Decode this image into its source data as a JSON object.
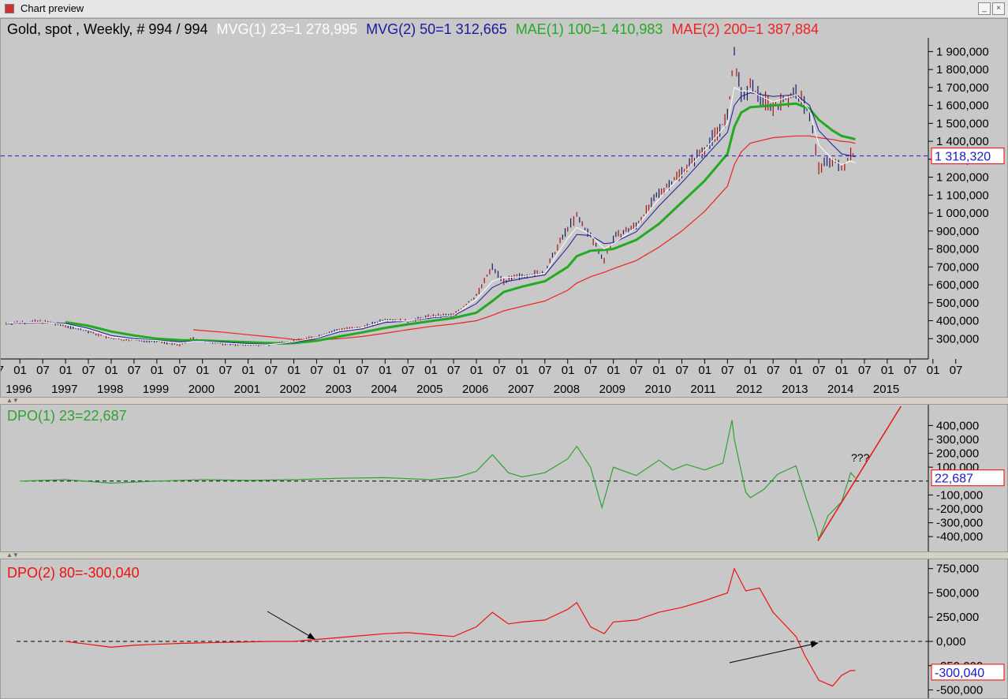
{
  "window": {
    "title": "Chart preview",
    "minimize": "_",
    "close": "×"
  },
  "main_header": {
    "base": "Gold, spot , Weekly, # 994 / 994",
    "mvg1": "MVG(1) 23=1 278,995",
    "mvg2": "MVG(2) 50=1 312,665",
    "mae1": "MAE(1) 100=1 410,983",
    "mae2": "MAE(2) 200=1 387,884"
  },
  "dpo1": {
    "header": "DPO(1) 23=22,687",
    "value_box": "22,687",
    "annotation": "???"
  },
  "dpo2": {
    "header": "DPO(2) 80=-300,040",
    "value_box": "-300,040"
  },
  "colors": {
    "panel_bg": "#c8c8c8",
    "mvg1": "#ffffff",
    "mvg2": "#1a1aa0",
    "mae1": "#22aa22",
    "mae2": "#ee2222",
    "dpo1": "#2fa22f",
    "dpo2": "#ee1111",
    "price_up": "#1a1a66",
    "price_down": "#aa1111"
  },
  "chart_data": [
    {
      "type": "line",
      "title": "Gold, spot , Weekly, # 994 / 994",
      "x_ticks": [
        "07",
        "01",
        "07",
        "01",
        "07",
        "01",
        "07",
        "01",
        "07",
        "01",
        "07",
        "01",
        "07",
        "01",
        "07",
        "01",
        "07",
        "01",
        "07",
        "01",
        "07",
        "01",
        "07",
        "01",
        "07",
        "01",
        "07",
        "01",
        "07",
        "01",
        "07",
        "01",
        "07",
        "01",
        "07",
        "01",
        "07",
        "01",
        "07",
        "01",
        "07",
        "01",
        "07"
      ],
      "x_years": [
        "1996",
        "1997",
        "1998",
        "1999",
        "2000",
        "2001",
        "2002",
        "2003",
        "2004",
        "2005",
        "2006",
        "2007",
        "2008",
        "2009",
        "2010",
        "2011",
        "2012",
        "2013",
        "2014",
        "2015"
      ],
      "y_ticks": [
        "300,000",
        "400,000",
        "500,000",
        "600,000",
        "700,000",
        "800,000",
        "900,000",
        "1 000,000",
        "1 100,000",
        "1 200,000",
        "1 300,000",
        "1 400,000",
        "1 500,000",
        "1 600,000",
        "1 700,000",
        "1 800,000",
        "1 900,000"
      ],
      "ylim": [
        200,
        1950
      ],
      "last_value": "1 318,320",
      "x": [
        1995.7,
        1996.0,
        1996.5,
        1997.0,
        1997.5,
        1998.0,
        1998.5,
        1999.0,
        1999.5,
        1999.8,
        2000.0,
        2000.5,
        2001.0,
        2001.4,
        2001.8,
        2002.0,
        2002.5,
        2003.0,
        2003.5,
        2004.0,
        2004.5,
        2005.0,
        2005.5,
        2006.0,
        2006.35,
        2006.6,
        2007.0,
        2007.5,
        2008.0,
        2008.2,
        2008.5,
        2008.8,
        2009.0,
        2009.5,
        2010.0,
        2010.5,
        2011.0,
        2011.5,
        2011.65,
        2011.8,
        2012.0,
        2012.5,
        2013.0,
        2013.3,
        2013.5,
        2013.8,
        2014.0,
        2014.2,
        2014.3
      ],
      "series": [
        {
          "name": "Gold, spot",
          "values": [
            385,
            392,
            395,
            372,
            340,
            300,
            290,
            287,
            262,
            305,
            285,
            270,
            265,
            265,
            282,
            285,
            312,
            352,
            360,
            410,
            395,
            425,
            430,
            540,
            700,
            620,
            650,
            670,
            920,
            980,
            870,
            740,
            860,
            930,
            1110,
            1230,
            1360,
            1530,
            1880,
            1650,
            1700,
            1590,
            1670,
            1560,
            1250,
            1300,
            1240,
            1340,
            1318
          ]
        },
        {
          "name": "MVG(1) 23",
          "values": [
            385,
            390,
            392,
            380,
            350,
            310,
            295,
            290,
            275,
            285,
            285,
            275,
            268,
            266,
            275,
            283,
            305,
            345,
            360,
            400,
            398,
            420,
            430,
            520,
            620,
            640,
            645,
            665,
            860,
            920,
            880,
            800,
            830,
            920,
            1080,
            1210,
            1350,
            1500,
            1700,
            1680,
            1680,
            1620,
            1660,
            1570,
            1380,
            1300,
            1270,
            1290,
            1279
          ]
        },
        {
          "name": "MVG(2) 50",
          "values": [
            383,
            388,
            390,
            385,
            358,
            318,
            300,
            292,
            282,
            286,
            286,
            280,
            272,
            268,
            272,
            280,
            300,
            338,
            355,
            390,
            398,
            415,
            428,
            495,
            585,
            615,
            635,
            655,
            810,
            880,
            875,
            830,
            835,
            895,
            1040,
            1170,
            1310,
            1450,
            1600,
            1650,
            1670,
            1650,
            1660,
            1600,
            1460,
            1380,
            1330,
            1320,
            1313
          ]
        },
        {
          "name": "MAE(1) 100",
          "values": [
            null,
            null,
            null,
            392,
            372,
            340,
            318,
            300,
            292,
            290,
            290,
            285,
            280,
            276,
            274,
            275,
            288,
            312,
            335,
            360,
            380,
            398,
            415,
            445,
            510,
            560,
            590,
            620,
            700,
            760,
            790,
            795,
            800,
            850,
            940,
            1060,
            1180,
            1330,
            1480,
            1560,
            1590,
            1600,
            1610,
            1580,
            1520,
            1460,
            1430,
            1418,
            1411
          ]
        },
        {
          "name": "MAE(2) 200",
          "values": [
            null,
            null,
            null,
            null,
            null,
            null,
            null,
            null,
            null,
            350,
            345,
            335,
            322,
            312,
            302,
            295,
            292,
            300,
            312,
            330,
            350,
            368,
            382,
            400,
            430,
            455,
            480,
            510,
            570,
            610,
            645,
            670,
            690,
            735,
            810,
            900,
            1010,
            1150,
            1270,
            1340,
            1390,
            1420,
            1430,
            1430,
            1420,
            1410,
            1400,
            1395,
            1388
          ]
        }
      ]
    },
    {
      "type": "line",
      "title": "DPO(1) 23=22,687",
      "y_ticks": [
        "-400,000",
        "-300,000",
        "-200,000",
        "-100,000",
        "100,000",
        "200,000",
        "300,000",
        "400,000"
      ],
      "ylim": [
        -450,
        470
      ],
      "x": [
        1996.0,
        1997.0,
        1998.0,
        1999.0,
        2000.0,
        2001.0,
        2002.0,
        2003.0,
        2004.0,
        2005.0,
        2005.6,
        2006.0,
        2006.35,
        2006.7,
        2007.0,
        2007.5,
        2008.0,
        2008.2,
        2008.5,
        2008.75,
        2009.0,
        2009.5,
        2010.0,
        2010.3,
        2010.6,
        2011.0,
        2011.4,
        2011.6,
        2011.65,
        2011.9,
        2012.0,
        2012.3,
        2012.6,
        2013.0,
        2013.2,
        2013.45,
        2013.5,
        2013.7,
        2014.0,
        2014.2,
        2014.3
      ],
      "series": [
        {
          "name": "DPO(1)",
          "values": [
            0,
            10,
            -15,
            0,
            10,
            5,
            10,
            20,
            25,
            10,
            30,
            70,
            190,
            60,
            30,
            60,
            160,
            250,
            100,
            -190,
            100,
            40,
            150,
            80,
            120,
            80,
            130,
            440,
            300,
            -80,
            -120,
            -60,
            50,
            110,
            -100,
            -350,
            -420,
            -250,
            -150,
            60,
            23
          ]
        },
        {
          "name": "Trend",
          "values": [
            null,
            null,
            null,
            null,
            null,
            null,
            null,
            null,
            null,
            null,
            null,
            null,
            null,
            null,
            null,
            null,
            null,
            null,
            null,
            null,
            null,
            null,
            null,
            null,
            null,
            null,
            null,
            null,
            null,
            null,
            null,
            null,
            null,
            null,
            null,
            null,
            -430,
            null,
            null,
            null,
            null
          ]
        }
      ]
    },
    {
      "type": "line",
      "title": "DPO(2) 80=-300,040",
      "y_ticks": [
        "-500,000",
        "-250,000",
        "0,000",
        "250,000",
        "500,000",
        "750,000"
      ],
      "ylim": [
        -520,
        780
      ],
      "x": [
        1997.0,
        1997.5,
        1998.0,
        1998.5,
        1999.0,
        1999.5,
        2000.0,
        2000.5,
        2001.0,
        2001.5,
        2002.0,
        2002.5,
        2003.0,
        2003.5,
        2004.0,
        2004.5,
        2005.0,
        2005.5,
        2006.0,
        2006.35,
        2006.7,
        2007.0,
        2007.5,
        2008.0,
        2008.2,
        2008.5,
        2008.8,
        2009.0,
        2009.5,
        2010.0,
        2010.5,
        2011.0,
        2011.5,
        2011.65,
        2011.9,
        2012.2,
        2012.5,
        2012.8,
        2013.0,
        2013.2,
        2013.5,
        2013.8,
        2014.0,
        2014.2,
        2014.3
      ],
      "series": [
        {
          "name": "DPO(2)",
          "values": [
            0,
            -30,
            -60,
            -40,
            -30,
            -20,
            -15,
            -10,
            -5,
            0,
            0,
            20,
            40,
            60,
            80,
            90,
            70,
            50,
            150,
            300,
            180,
            200,
            220,
            330,
            400,
            150,
            80,
            200,
            220,
            300,
            350,
            420,
            500,
            750,
            520,
            550,
            300,
            150,
            50,
            -150,
            -400,
            -460,
            -350,
            -300,
            -300
          ]
        }
      ]
    }
  ]
}
